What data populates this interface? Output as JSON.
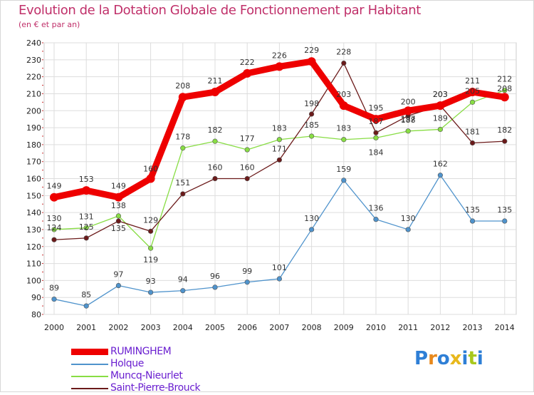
{
  "header": {
    "title": "Evolution de la Dotation Globale de Fonctionnement par Habitant",
    "subtitle": "(en € et par an)"
  },
  "chart_data": {
    "type": "line",
    "title": "Evolution de la Dotation Globale de Fonctionnement par Habitant",
    "subtitle": "(en € et par an)",
    "xlabel": "",
    "ylabel": "",
    "x": [
      "2000",
      "2001",
      "2002",
      "2003",
      "2004",
      "2005",
      "2006",
      "2007",
      "2008",
      "2009",
      "2010",
      "2011",
      "2012",
      "2013",
      "2014"
    ],
    "ylim": [
      80,
      240
    ],
    "ytick_step": 10,
    "grid": true,
    "legend_position": "bottom-left",
    "series": [
      {
        "name": "RUMINGHEM",
        "color": "#ee0000",
        "values": [
          149,
          153,
          149,
          160,
          208,
          211,
          222,
          226,
          229,
          203,
          195,
          200,
          203,
          211,
          208
        ]
      },
      {
        "name": "Holque",
        "color": "#4f93cc",
        "values": [
          89,
          85,
          97,
          93,
          94,
          96,
          99,
          101,
          130,
          159,
          136,
          130,
          162,
          135,
          135
        ]
      },
      {
        "name": "Muncq-Nieurlet",
        "color": "#88dd44",
        "values": [
          130,
          131,
          138,
          119,
          178,
          182,
          177,
          183,
          185,
          183,
          184,
          188,
          189,
          205,
          212
        ]
      },
      {
        "name": "Saint-Pierre-Brouck",
        "color": "#6b1a1a",
        "values": [
          124,
          125,
          135,
          129,
          151,
          160,
          160,
          171,
          198,
          228,
          187,
          197,
          203,
          181,
          182
        ]
      }
    ]
  },
  "logo": {
    "letters": [
      "P",
      "r",
      "o",
      "x",
      "i",
      "t",
      "i"
    ],
    "colors": [
      "#2e7fd6",
      "#e8891c",
      "#2e7fd6",
      "#e8b81c",
      "#2e7fd6",
      "#a8c81c",
      "#2e7fd6"
    ]
  }
}
